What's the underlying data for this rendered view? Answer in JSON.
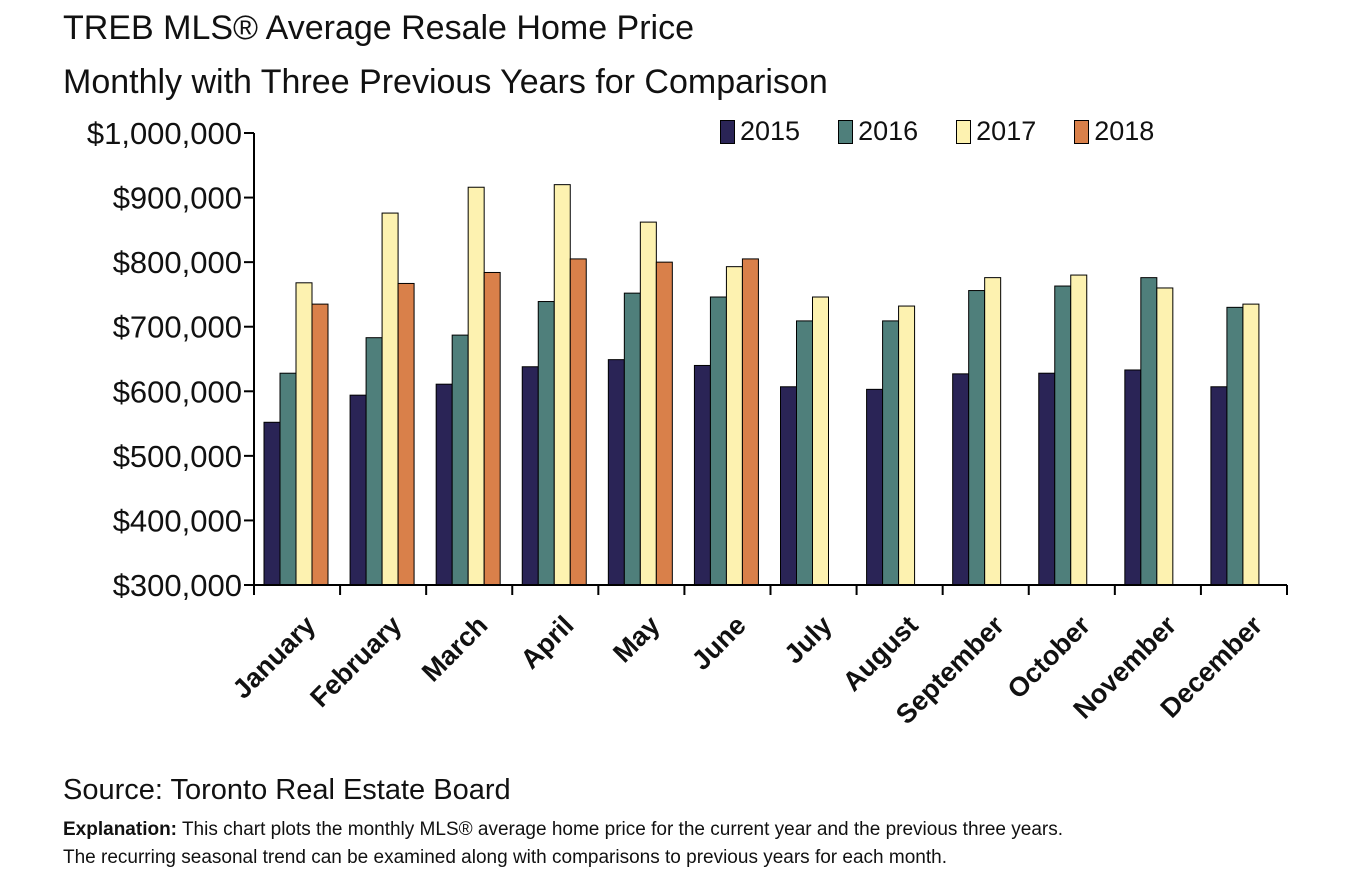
{
  "title_line1": "TREB MLS® Average Resale Home Price",
  "title_line2": "Monthly with Three Previous Years for Comparison",
  "source": "Source: Toronto Real Estate Board",
  "explanation_label": "Explanation:",
  "explanation_line1": " This chart plots the monthly MLS® average home price for the current year and the previous three years.",
  "explanation_line2": "The recurring seasonal trend can be examined along with comparisons to previous years for each month.",
  "colors": {
    "2015": "#2a2456",
    "2016": "#4f7f7b",
    "2017": "#fdf2b0",
    "2018": "#d9804a"
  },
  "chart_data": {
    "type": "bar",
    "categories": [
      "January",
      "February",
      "March",
      "April",
      "May",
      "June",
      "July",
      "August",
      "September",
      "October",
      "November",
      "December"
    ],
    "series": [
      {
        "name": "2015",
        "values": [
          552000,
          594000,
          611000,
          638000,
          649000,
          640000,
          607000,
          603000,
          627000,
          628000,
          633000,
          607000
        ]
      },
      {
        "name": "2016",
        "values": [
          628000,
          683000,
          687000,
          739000,
          752000,
          746000,
          709000,
          709000,
          756000,
          763000,
          776000,
          730000
        ]
      },
      {
        "name": "2017",
        "values": [
          768000,
          876000,
          916000,
          920000,
          862000,
          793000,
          746000,
          732000,
          776000,
          780000,
          760000,
          735000
        ]
      },
      {
        "name": "2018",
        "values": [
          735000,
          767000,
          784000,
          805000,
          800000,
          805000,
          null,
          null,
          null,
          null,
          null,
          null
        ]
      }
    ],
    "ylim": [
      300000,
      1000000
    ],
    "yticks": [
      "$300,000",
      "$400,000",
      "$500,000",
      "$600,000",
      "$700,000",
      "$800,000",
      "$900,000",
      "$1,000,000"
    ],
    "legend": "top-right",
    "grid": false
  }
}
